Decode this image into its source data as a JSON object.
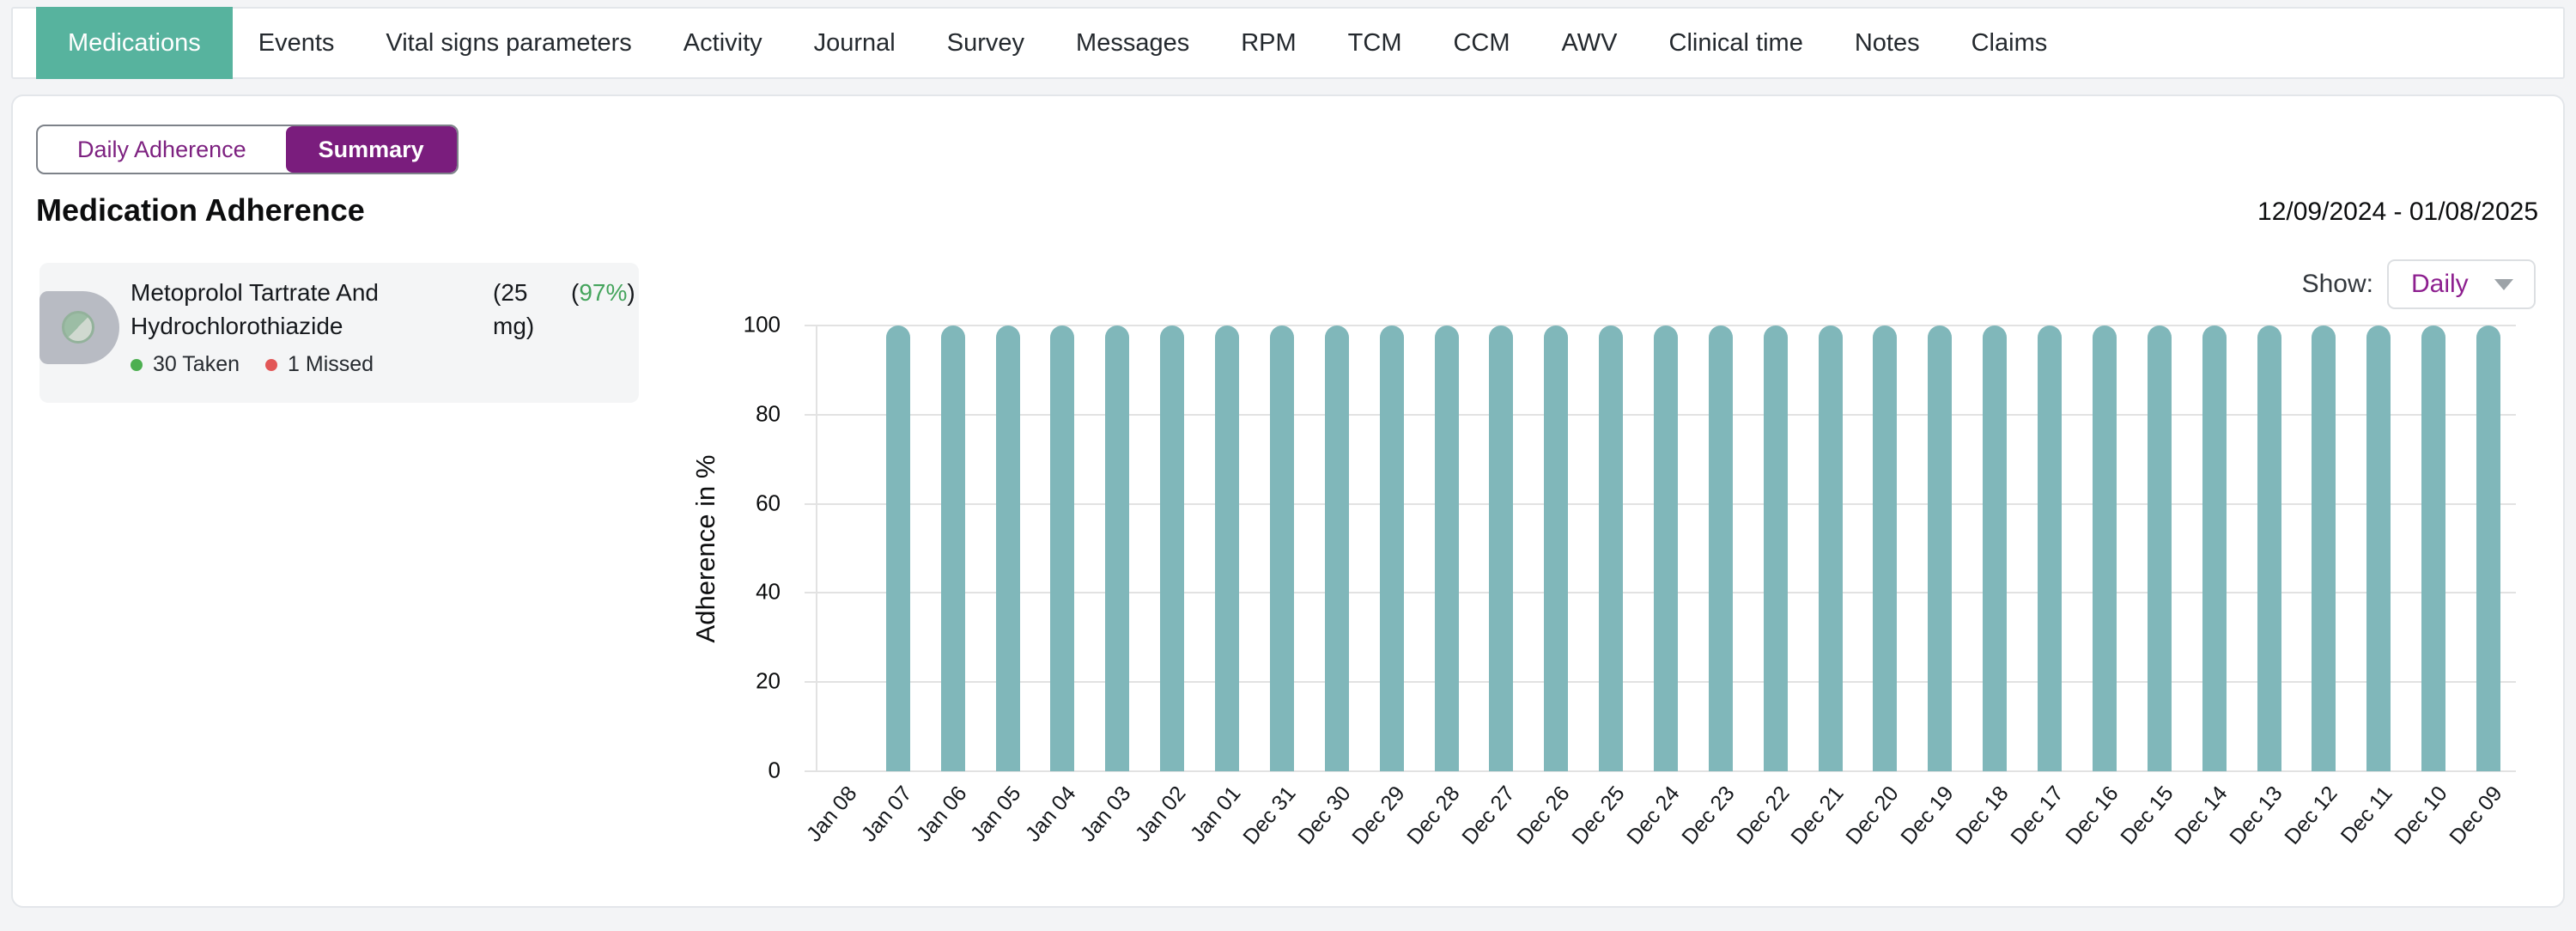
{
  "nav": {
    "tabs": [
      {
        "label": "Medications",
        "active": true
      },
      {
        "label": "Events"
      },
      {
        "label": "Vital signs parameters"
      },
      {
        "label": "Activity"
      },
      {
        "label": "Journal"
      },
      {
        "label": "Survey"
      },
      {
        "label": "Messages"
      },
      {
        "label": "RPM"
      },
      {
        "label": "TCM"
      },
      {
        "label": "CCM"
      },
      {
        "label": "AWV"
      },
      {
        "label": "Clinical time"
      },
      {
        "label": "Notes"
      },
      {
        "label": "Claims"
      }
    ]
  },
  "view_toggle": {
    "options": [
      {
        "label": "Daily Adherence",
        "active": false
      },
      {
        "label": "Summary",
        "active": true
      }
    ]
  },
  "header": {
    "title": "Medication Adherence",
    "date_range": "12/09/2024 - 01/08/2025"
  },
  "show_filter": {
    "label": "Show:",
    "selected": "Daily",
    "caret_icon": "chevron-down-icon"
  },
  "medication_card": {
    "pill_icon": "half-filled-pill-icon",
    "name": "Metoprolol Tartrate And Hydrochlorothiazide",
    "dose": "(25 mg)",
    "adherence": {
      "open": "(",
      "value": "97%",
      "close": ")"
    },
    "taken": "30 Taken",
    "missed": "1 Missed"
  },
  "chart_data": {
    "type": "bar",
    "title": "",
    "ylabel": "Adherence in %",
    "xlabel": "",
    "ylim": [
      0,
      100
    ],
    "yticks": [
      0,
      20,
      40,
      60,
      80,
      100
    ],
    "grid": true,
    "legend": "none",
    "bar_color": "#80b7ba",
    "categories": [
      "Jan 08",
      "Jan 07",
      "Jan 06",
      "Jan 05",
      "Jan 04",
      "Jan 03",
      "Jan 02",
      "Jan 01",
      "Dec 31",
      "Dec 30",
      "Dec 29",
      "Dec 28",
      "Dec 27",
      "Dec 26",
      "Dec 25",
      "Dec 24",
      "Dec 23",
      "Dec 22",
      "Dec 21",
      "Dec 20",
      "Dec 19",
      "Dec 18",
      "Dec 17",
      "Dec 16",
      "Dec 15",
      "Dec 14",
      "Dec 13",
      "Dec 12",
      "Dec 11",
      "Dec 10",
      "Dec 09"
    ],
    "values": [
      0,
      100,
      100,
      100,
      100,
      100,
      100,
      100,
      100,
      100,
      100,
      100,
      100,
      100,
      100,
      100,
      100,
      100,
      100,
      100,
      100,
      100,
      100,
      100,
      100,
      100,
      100,
      100,
      100,
      100,
      100
    ]
  },
  "colors": {
    "active_tab_teal": "#57b39e",
    "bar_teal": "#80b7ba",
    "accent_purple": "#7a1d7d",
    "purple_text": "#7d2180",
    "taken_green": "#4caf50",
    "percent_green": "#44a45c",
    "missed_red": "#e25757"
  }
}
